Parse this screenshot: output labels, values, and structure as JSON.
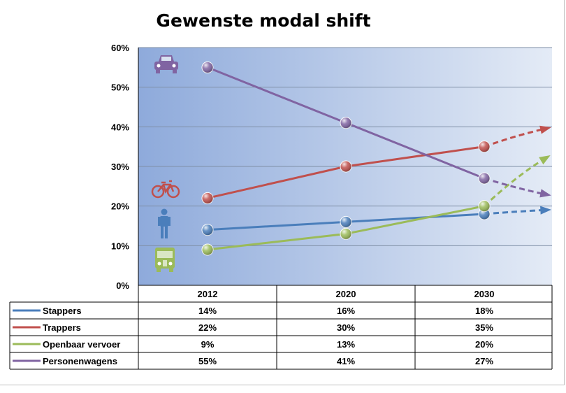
{
  "chart_data": {
    "type": "line",
    "title": "Gewenste modal shift",
    "categories": [
      "2012",
      "2020",
      "2030"
    ],
    "ylim": [
      0,
      60
    ],
    "y_ticks": [
      "0%",
      "10%",
      "20%",
      "30%",
      "40%",
      "50%",
      "60%"
    ],
    "grid": true,
    "legend": "data-table-below",
    "series": [
      {
        "name": "Stappers",
        "values": [
          14,
          16,
          18
        ],
        "labels": [
          "14%",
          "16%",
          "18%"
        ],
        "color": "#4a7ebb",
        "trend_end": 19,
        "icon": "pedestrian-icon"
      },
      {
        "name": "Trappers",
        "values": [
          22,
          30,
          35
        ],
        "labels": [
          "22%",
          "30%",
          "35%"
        ],
        "color": "#c0504d",
        "trend_end": 39.5,
        "icon": "bicycle-icon"
      },
      {
        "name": "Openbaar vervoer",
        "values": [
          9,
          13,
          20
        ],
        "labels": [
          "9%",
          "13%",
          "20%"
        ],
        "color": "#9bbb59",
        "trend_end": 32,
        "icon": "bus-icon"
      },
      {
        "name": "Personenwagens",
        "values": [
          55,
          41,
          27
        ],
        "labels": [
          "55%",
          "41%",
          "27%"
        ],
        "color": "#8064a2",
        "trend_end": 23,
        "icon": "car-icon"
      }
    ]
  }
}
